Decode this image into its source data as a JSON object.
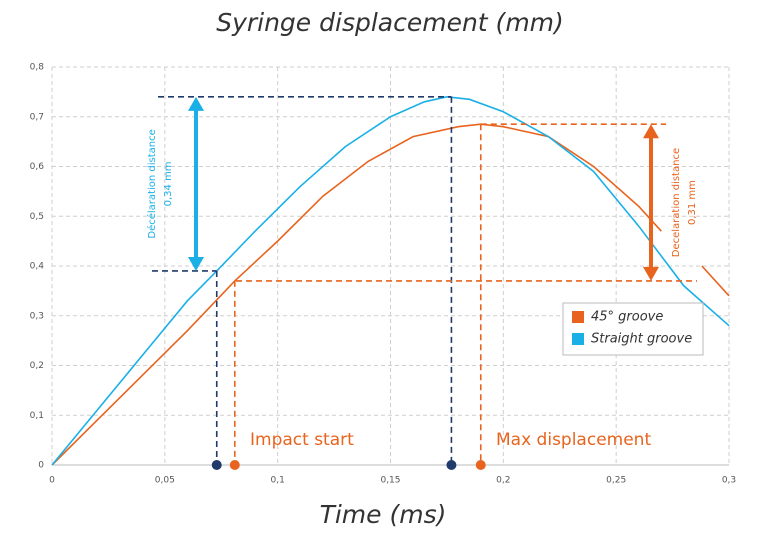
{
  "chart_data": {
    "type": "line",
    "title": "Syringe displacement (mm)",
    "x_label": "Time (ms)",
    "xlim": [
      0,
      0.3
    ],
    "ylim": [
      0,
      0.8
    ],
    "xticks": [
      0,
      {
        "value": 0.05,
        "label": "0,05"
      },
      {
        "value": 0.1,
        "label": "0,1"
      },
      {
        "value": 0.15,
        "label": "0,15"
      },
      {
        "value": 0.2,
        "label": "0,2"
      },
      {
        "value": 0.25,
        "label": "0,25"
      },
      {
        "value": 0.3,
        "label": "0,3"
      }
    ],
    "yticks": [
      0,
      {
        "value": 0.1,
        "label": "0,1"
      },
      {
        "value": 0.2,
        "label": "0,2"
      },
      {
        "value": 0.3,
        "label": "0,3"
      },
      {
        "value": 0.4,
        "label": "0,4"
      },
      {
        "value": 0.5,
        "label": "0,5"
      },
      {
        "value": 0.6,
        "label": "0,6"
      },
      {
        "value": 0.7,
        "label": "0,7"
      },
      {
        "value": 0.8,
        "label": "0,8"
      }
    ],
    "grid": true,
    "legend": "right",
    "annotations": {
      "impact": "Impact start",
      "max": "Max displacement"
    },
    "series": [
      {
        "name": "45° groove",
        "color": "#e8641e",
        "x": [
          0,
          0.02,
          0.04,
          0.06,
          0.081,
          0.1,
          0.12,
          0.14,
          0.16,
          0.18,
          0.19,
          0.2,
          0.22,
          0.24,
          0.26,
          0.27,
          0.28,
          0.288,
          0.3
        ],
        "values": [
          0,
          0.09,
          0.18,
          0.27,
          0.37,
          0.45,
          0.54,
          0.61,
          0.66,
          0.68,
          0.685,
          0.68,
          0.66,
          0.6,
          0.52,
          0.47,
          null,
          0.4,
          0.34
        ],
        "impact": {
          "x": 0.081,
          "y": 0.37
        },
        "max": {
          "x": 0.19,
          "y": 0.685
        },
        "deceleration_label": [
          "Decelaration distance",
          "0,31 mm"
        ]
      },
      {
        "name": "Straight groove",
        "color": "#1ab0e6",
        "x": [
          0,
          0.02,
          0.04,
          0.06,
          0.073,
          0.09,
          0.11,
          0.13,
          0.15,
          0.165,
          0.175,
          0.185,
          0.2,
          0.22,
          0.24,
          0.26,
          0.28,
          0.3
        ],
        "values": [
          0,
          0.11,
          0.22,
          0.33,
          0.39,
          0.47,
          0.56,
          0.64,
          0.7,
          0.73,
          0.74,
          0.735,
          0.71,
          0.66,
          0.59,
          0.48,
          0.36,
          0.28
        ],
        "impact": {
          "x": 0.073,
          "y": 0.39
        },
        "max": {
          "x": 0.177,
          "y": 0.74
        },
        "deceleration_label": [
          "Décélaration distance",
          "0,34 mm"
        ]
      }
    ]
  }
}
